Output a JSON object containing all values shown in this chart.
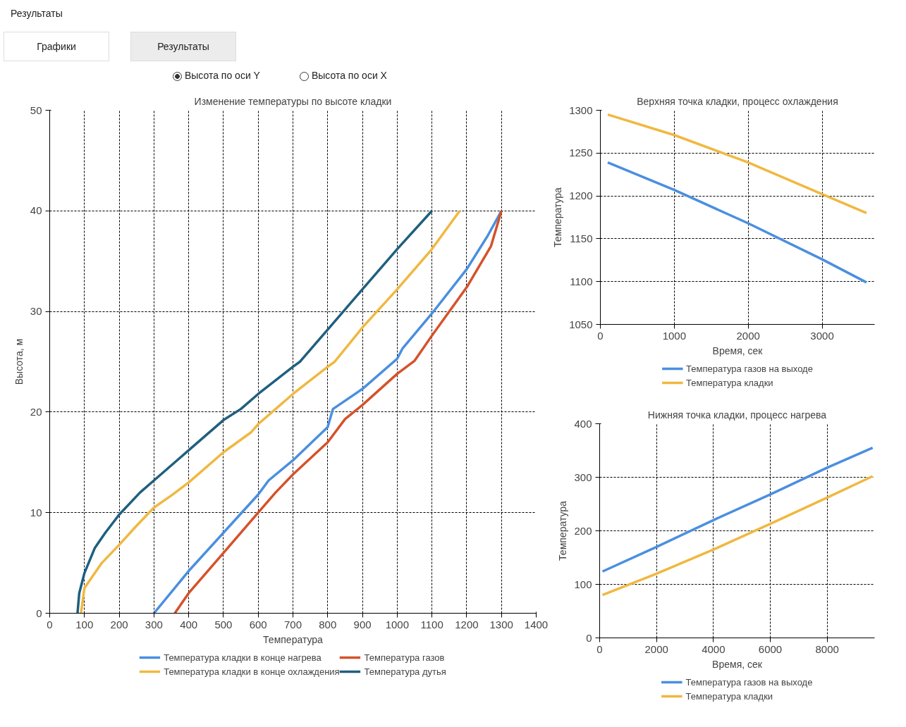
{
  "chart_data": [
    {
      "type": "other",
      "annotations": [
        "Результаты",
        "Графики",
        "Результаты",
        "Высота по оси Y",
        "Высота по оси X"
      ]
    },
    {
      "type": "line",
      "title": "Изменение температуры по высоте кладки",
      "xlabel": "Температура",
      "ylabel": "Высота, м",
      "xlim": [
        0,
        1400
      ],
      "ylim": [
        0,
        50
      ],
      "xticks": [
        0,
        100,
        200,
        300,
        400,
        500,
        600,
        700,
        800,
        900,
        1000,
        1100,
        1200,
        1300,
        1400
      ],
      "yticks": [
        0,
        10,
        20,
        30,
        40,
        50
      ],
      "grid": true,
      "legend": "bottom",
      "series": [
        {
          "name": "Температура кладки в конце нагрева",
          "color": "#4a8fe0",
          "x": [
            300,
            400,
            500,
            600,
            630,
            700,
            800,
            815,
            900,
            1000,
            1015,
            1100,
            1200,
            1260,
            1300
          ],
          "values": [
            0,
            4.2,
            8,
            11.8,
            13.2,
            15.2,
            18.5,
            20.3,
            22.3,
            25.3,
            26.3,
            29.8,
            34.2,
            37.5,
            40
          ]
        },
        {
          "name": "Температура кладки в конце охлаждения",
          "color": "#f0b840",
          "x": [
            90,
            100,
            150,
            200,
            250,
            300,
            350,
            400,
            500,
            580,
            600,
            650,
            700,
            800,
            820,
            900,
            1000,
            1100,
            1180
          ],
          "values": [
            0,
            2.5,
            5,
            6.8,
            8.7,
            10.5,
            11.7,
            13,
            16,
            18,
            18.8,
            20.3,
            21.8,
            24.5,
            25,
            28.4,
            32.2,
            36.2,
            40
          ]
        },
        {
          "name": "Температура газов",
          "color": "#d5522a",
          "x": [
            360,
            400,
            500,
            600,
            650,
            700,
            800,
            850,
            900,
            1000,
            1050,
            1100,
            1200,
            1270,
            1300
          ],
          "values": [
            0,
            2,
            6,
            10,
            12,
            13.8,
            17,
            19.3,
            20.7,
            23.8,
            25.1,
            27.6,
            32.4,
            36.5,
            40
          ]
        },
        {
          "name": "Температура дутья",
          "color": "#1f5f7f",
          "x": [
            80,
            85,
            100,
            130,
            160,
            200,
            260,
            300,
            400,
            500,
            550,
            600,
            700,
            720,
            800,
            900,
            1000,
            1100
          ],
          "values": [
            0,
            2,
            4,
            6.5,
            8,
            9.8,
            12,
            13.2,
            16.2,
            19.2,
            20.3,
            21.8,
            24.5,
            25,
            28.2,
            32.2,
            36.2,
            40
          ]
        }
      ]
    },
    {
      "type": "line",
      "title": "Верхняя точка кладки, процесс охлаждения",
      "xlabel": "Время, сек",
      "ylabel": "Температура",
      "xlim": [
        0,
        3710
      ],
      "ylim": [
        1050,
        1300
      ],
      "xticks": [
        0,
        1000,
        2000,
        3000
      ],
      "yticks": [
        1050,
        1100,
        1150,
        1200,
        1250,
        1300
      ],
      "grid": true,
      "legend": "bottom",
      "series": [
        {
          "name": "Температура газов на выходе",
          "color": "#4a8fe0",
          "x": [
            100,
            1000,
            2000,
            3000,
            3600
          ],
          "values": [
            1239,
            1207,
            1168,
            1126,
            1099
          ]
        },
        {
          "name": "Температура кладки",
          "color": "#f0b840",
          "x": [
            100,
            1000,
            2000,
            3000,
            3600
          ],
          "values": [
            1295,
            1271,
            1239,
            1202,
            1180
          ]
        }
      ]
    },
    {
      "type": "line",
      "title": "Нижняя точка кладки, процесс нагрева",
      "xlabel": "Время, сек",
      "ylabel": "Температура",
      "xlim": [
        0,
        9670
      ],
      "ylim": [
        0,
        400
      ],
      "xticks": [
        0,
        2000,
        4000,
        6000,
        8000
      ],
      "yticks": [
        0,
        100,
        200,
        300,
        400
      ],
      "grid": true,
      "legend": "bottom",
      "series": [
        {
          "name": "Температура газов на выходе",
          "color": "#4a8fe0",
          "x": [
            100,
            2000,
            4000,
            6000,
            8000,
            9600
          ],
          "values": [
            124,
            170,
            220,
            268,
            318,
            355
          ]
        },
        {
          "name": "Температура кладки",
          "color": "#f0b840",
          "x": [
            100,
            2000,
            4000,
            6000,
            8000,
            9600
          ],
          "values": [
            80,
            120,
            165,
            213,
            262,
            302
          ]
        }
      ]
    }
  ]
}
